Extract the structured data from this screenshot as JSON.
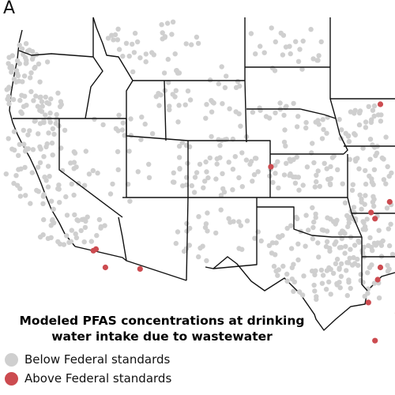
{
  "panel_label": "A",
  "colors": {
    "land": "#ffffff",
    "border": "#111111",
    "below": "#cfcfcf",
    "above": "#cc4b50"
  },
  "legend": {
    "title_line1": "Modeled PFAS concentrations at drinking",
    "title_line2": "water intake due to wastewater",
    "below_label": "Below Federal standards",
    "above_label": "Above Federal standards"
  },
  "points": {
    "above": [
      {
        "lon": -104.8,
        "lat": 39.4
      },
      {
        "lon": -96.6,
        "lat": 43.5
      },
      {
        "lon": -94.7,
        "lat": 38.9
      },
      {
        "lon": -94.9,
        "lat": 38.3
      },
      {
        "lon": -95.9,
        "lat": 37.1
      },
      {
        "lon": -97.3,
        "lat": 36.4
      },
      {
        "lon": -97.0,
        "lat": 36.0
      },
      {
        "lon": -117.9,
        "lat": 34.0
      },
      {
        "lon": -118.1,
        "lat": 33.9
      },
      {
        "lon": -117.2,
        "lat": 32.8
      },
      {
        "lon": -114.6,
        "lat": 32.7
      },
      {
        "lon": -96.6,
        "lat": 32.8
      },
      {
        "lon": -96.8,
        "lat": 32.0
      },
      {
        "lon": -94.1,
        "lat": 31.5
      },
      {
        "lon": -97.5,
        "lat": 30.5
      },
      {
        "lon": -95.3,
        "lat": 29.8
      },
      {
        "lon": -94.0,
        "lat": 30.0
      },
      {
        "lon": -97.0,
        "lat": 28.0
      }
    ]
  }
}
